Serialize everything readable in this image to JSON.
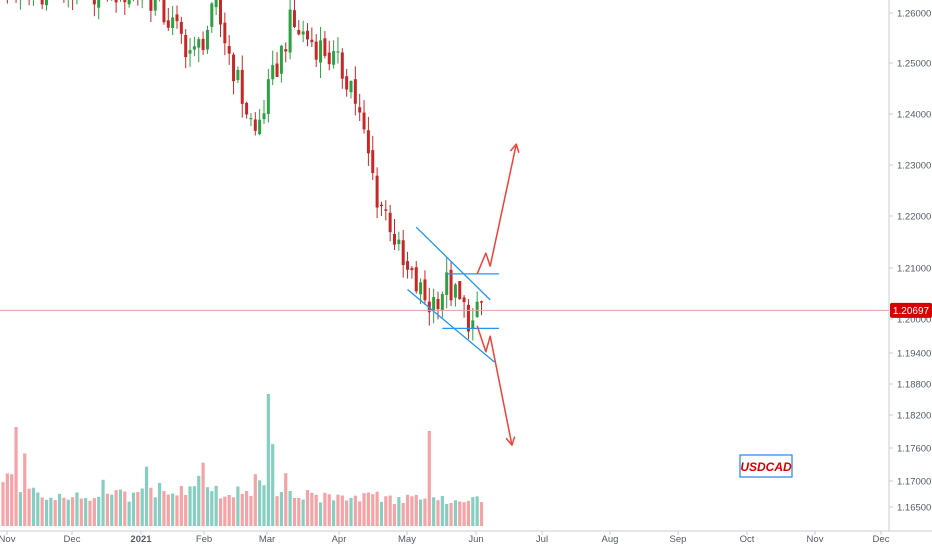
{
  "symbol_label": "USDCAD",
  "current_price_label": "1.20697",
  "chart_data": {
    "type": "candlestick",
    "title": "",
    "x_tick_labels": [
      "Nov",
      "Dec",
      "2021",
      "Feb",
      "Mar",
      "Apr",
      "May",
      "Jun",
      "Jul",
      "Aug",
      "Sep",
      "Oct",
      "Nov",
      "Dec"
    ],
    "y_tick_labels": [
      "1.26000",
      "1.25000",
      "1.24000",
      "1.23000",
      "1.22000",
      "1.21000",
      "1.20000",
      "1.19400",
      "1.18800",
      "1.18200",
      "1.17600",
      "1.17000",
      "1.16500"
    ],
    "ylim": [
      1.164,
      1.264
    ],
    "current_price": 1.20697,
    "colors": {
      "up": "#2ea043",
      "down": "#c62828",
      "volume_up": "#86cfc0",
      "volume_down": "#f4a3a6",
      "pattern": "#2196f3",
      "arrow": "#ef4238",
      "price_line": "#d9a2a2",
      "price_badge": "#d50000"
    },
    "candle_segments": [
      {
        "from": 0,
        "to": 15,
        "start": 1.2685,
        "end": 1.269
      },
      {
        "from": 15,
        "to": 33,
        "start": 1.269,
        "end": 1.268
      },
      {
        "from": 33,
        "to": 37,
        "start": 1.268,
        "end": 1.264
      },
      {
        "from": 37,
        "to": 44,
        "start": 1.264,
        "end": 1.256
      },
      {
        "from": 44,
        "to": 49,
        "start": 1.256,
        "end": 1.265
      },
      {
        "from": 49,
        "to": 55,
        "start": 1.265,
        "end": 1.248
      },
      {
        "from": 55,
        "to": 58,
        "start": 1.248,
        "end": 1.241
      },
      {
        "from": 58,
        "to": 66,
        "start": 1.241,
        "end": 1.262
      },
      {
        "from": 66,
        "to": 74,
        "start": 1.262,
        "end": 1.257
      },
      {
        "from": 74,
        "to": 80,
        "start": 1.257,
        "end": 1.251
      },
      {
        "from": 80,
        "to": 82,
        "start": 1.251,
        "end": 1.244
      },
      {
        "from": 82,
        "to": 86,
        "start": 1.244,
        "end": 1.229
      },
      {
        "from": 86,
        "to": 89,
        "start": 1.229,
        "end": 1.224
      },
      {
        "from": 89,
        "to": 92,
        "start": 1.224,
        "end": 1.215
      },
      {
        "from": 92,
        "to": 98,
        "start": 1.215,
        "end": 1.208
      },
      {
        "from": 98,
        "to": 102,
        "start": 1.208,
        "end": 1.212
      },
      {
        "from": 102,
        "to": 106,
        "start": 1.212,
        "end": 1.207
      },
      {
        "from": 106,
        "to": 108,
        "start": 1.207,
        "end": 1.204
      },
      {
        "from": 108,
        "to": 111,
        "start": 1.204,
        "end": 1.21
      }
    ],
    "volume_levels": [
      {
        "from": 0,
        "to": 4,
        "level": 0.38
      },
      {
        "from": 4,
        "to": 8,
        "level": 0.27
      },
      {
        "from": 8,
        "to": 30,
        "level": 0.23
      },
      {
        "from": 30,
        "to": 36,
        "level": 0.25
      },
      {
        "from": 36,
        "to": 46,
        "level": 0.28
      },
      {
        "from": 46,
        "to": 58,
        "level": 0.26
      },
      {
        "from": 58,
        "to": 62,
        "level": 0.36
      },
      {
        "from": 62,
        "to": 72,
        "level": 0.25
      },
      {
        "from": 72,
        "to": 90,
        "level": 0.22
      },
      {
        "from": 90,
        "to": 111,
        "level": 0.2
      }
    ],
    "volume_spikes": [
      {
        "index": 3,
        "level": 0.75
      },
      {
        "index": 5,
        "level": 0.55
      },
      {
        "index": 23,
        "level": 0.35
      },
      {
        "index": 33,
        "level": 0.45
      },
      {
        "index": 43,
        "level": 0.3
      },
      {
        "index": 45,
        "level": 0.38
      },
      {
        "index": 46,
        "level": 0.48
      },
      {
        "index": 61,
        "level": 1.0
      },
      {
        "index": 62,
        "level": 0.62
      },
      {
        "index": 65,
        "level": 0.4
      },
      {
        "index": 98,
        "level": 0.72
      }
    ],
    "pattern": {
      "channel_upper": [
        {
          "date_index": 95,
          "price": 1.223
        },
        {
          "date_index": 112,
          "price": 1.209
        }
      ],
      "channel_lower": [
        {
          "date_index": 93,
          "price": 1.211
        },
        {
          "date_index": 113,
          "price": 1.197
        }
      ],
      "range_top": [
        {
          "date_index": 102,
          "price": 1.214
        },
        {
          "date_index": 114,
          "price": 1.214
        }
      ],
      "range_bottom": [
        {
          "date_index": 101,
          "price": 1.2035
        },
        {
          "date_index": 114,
          "price": 1.2035
        }
      ]
    },
    "scenarios": [
      {
        "direction": "up",
        "path": [
          {
            "date_index": 109,
            "price": 1.214
          },
          {
            "date_index": 111,
            "price": 1.218
          },
          {
            "date_index": 112,
            "price": 1.2155
          },
          {
            "date_index": 118,
            "price": 1.239
          }
        ]
      },
      {
        "direction": "down",
        "path": [
          {
            "date_index": 109,
            "price": 1.204
          },
          {
            "date_index": 111,
            "price": 1.199
          },
          {
            "date_index": 112,
            "price": 1.202
          },
          {
            "date_index": 117,
            "price": 1.181
          }
        ]
      }
    ]
  }
}
